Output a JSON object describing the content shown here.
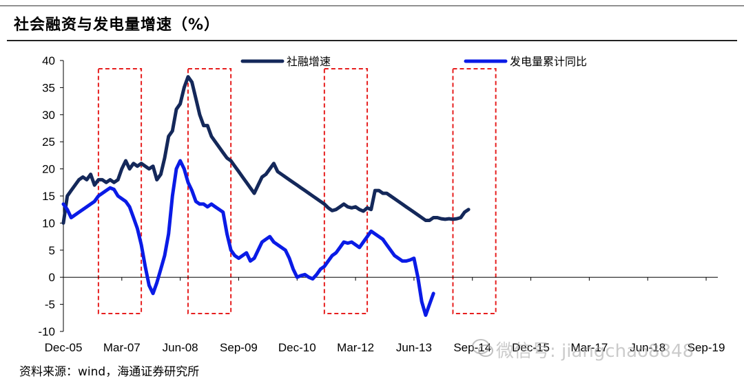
{
  "header": {
    "title": "社会融资与发电量增速（%）"
  },
  "footer": {
    "source": "资料来源：wind，海通证券研究所"
  },
  "watermark": {
    "text": "微信号: jiangchao8848"
  },
  "colors": {
    "social_financing": "#14285a",
    "power_generation": "#0a1be6",
    "highlight": "#e61e1e"
  },
  "chart_data": {
    "type": "line",
    "title": "社会融资与发电量增速（%）",
    "xlabel": "",
    "ylabel": "",
    "ylim": [
      -10,
      40
    ],
    "yticks": [
      -10,
      -5,
      0,
      5,
      10,
      15,
      20,
      25,
      30,
      35,
      40
    ],
    "x_range": [
      0,
      168
    ],
    "x_ticks": [
      {
        "label": "Dec-05",
        "x": 0
      },
      {
        "label": "Mar-07",
        "x": 15
      },
      {
        "label": "Jun-08",
        "x": 30
      },
      {
        "label": "Sep-09",
        "x": 45
      },
      {
        "label": "Dec-10",
        "x": 60
      },
      {
        "label": "Mar-12",
        "x": 75
      },
      {
        "label": "Jun-13",
        "x": 90
      },
      {
        "label": "Sep-14",
        "x": 105
      },
      {
        "label": "Dec-15",
        "x": 120
      },
      {
        "label": "Mar-17",
        "x": 135
      },
      {
        "label": "Jun-18",
        "x": 150
      },
      {
        "label": "Sep-19",
        "x": 165
      }
    ],
    "legend_position": "top",
    "highlight_periods": [
      {
        "x_start": 9,
        "x_end": 20
      },
      {
        "x_start": 32,
        "x_end": 43
      },
      {
        "x_start": 67,
        "x_end": 78
      },
      {
        "x_start": 100,
        "x_end": 111
      }
    ],
    "series": [
      {
        "name": "社融增速",
        "color_key": "social_financing",
        "points": [
          [
            0,
            10
          ],
          [
            1,
            15
          ],
          [
            2,
            16
          ],
          [
            3,
            17
          ],
          [
            4,
            18
          ],
          [
            5,
            18.5
          ],
          [
            6,
            18
          ],
          [
            7,
            19
          ],
          [
            8,
            17
          ],
          [
            9,
            18
          ],
          [
            10,
            18
          ],
          [
            11,
            17.5
          ],
          [
            12,
            18
          ],
          [
            13,
            17.5
          ],
          [
            14,
            18
          ],
          [
            15,
            20
          ],
          [
            16,
            21.5
          ],
          [
            17,
            20
          ],
          [
            18,
            21
          ],
          [
            19,
            20.5
          ],
          [
            20,
            21
          ],
          [
            21,
            20.5
          ],
          [
            22,
            20
          ],
          [
            23,
            20.5
          ],
          [
            24,
            18
          ],
          [
            25,
            19
          ],
          [
            26,
            22
          ],
          [
            27,
            26
          ],
          [
            28,
            27
          ],
          [
            29,
            31
          ],
          [
            30,
            32
          ],
          [
            31,
            35
          ],
          [
            32,
            37
          ],
          [
            33,
            36
          ],
          [
            34,
            33
          ],
          [
            35,
            30
          ],
          [
            36,
            28
          ],
          [
            37,
            28
          ],
          [
            38,
            26
          ],
          [
            39,
            25
          ],
          [
            40,
            24
          ],
          [
            41,
            23
          ],
          [
            42,
            22
          ],
          [
            43,
            21.5
          ],
          [
            44,
            20.5
          ],
          [
            45,
            19.5
          ],
          [
            46,
            18.5
          ],
          [
            47,
            17.5
          ],
          [
            48,
            16.5
          ],
          [
            49,
            15.5
          ],
          [
            50,
            17
          ],
          [
            51,
            18.5
          ],
          [
            52,
            19
          ],
          [
            53,
            20
          ],
          [
            54,
            21
          ],
          [
            55,
            19.5
          ],
          [
            56,
            19
          ],
          [
            57,
            18.5
          ],
          [
            58,
            18
          ],
          [
            59,
            17.5
          ],
          [
            60,
            17
          ],
          [
            61,
            16.5
          ],
          [
            62,
            16
          ],
          [
            63,
            15.5
          ],
          [
            64,
            15
          ],
          [
            65,
            14.5
          ],
          [
            66,
            14
          ],
          [
            67,
            13.5
          ],
          [
            68,
            12.8
          ],
          [
            69,
            12.3
          ],
          [
            70,
            12.5
          ],
          [
            71,
            13
          ],
          [
            72,
            13.5
          ],
          [
            73,
            13
          ],
          [
            74,
            12.8
          ],
          [
            75,
            13
          ],
          [
            76,
            12.5
          ],
          [
            77,
            12.2
          ],
          [
            78,
            12.8
          ],
          [
            79,
            12.5
          ],
          [
            80,
            16
          ],
          [
            81,
            16
          ],
          [
            82,
            15.5
          ],
          [
            83,
            15.5
          ],
          [
            84,
            15
          ],
          [
            85,
            14.5
          ],
          [
            86,
            14
          ],
          [
            87,
            13.5
          ],
          [
            88,
            13
          ],
          [
            89,
            12.5
          ],
          [
            90,
            12
          ],
          [
            91,
            11.5
          ],
          [
            92,
            11
          ],
          [
            93,
            10.5
          ],
          [
            94,
            10.5
          ],
          [
            95,
            11
          ],
          [
            96,
            11
          ],
          [
            97,
            10.8
          ],
          [
            98,
            10.7
          ],
          [
            99,
            10.8
          ],
          [
            100,
            10.7
          ],
          [
            101,
            10.8
          ],
          [
            102,
            11
          ],
          [
            103,
            12
          ],
          [
            104,
            12.5
          ]
        ]
      },
      {
        "name": "发电量累计同比",
        "color_key": "power_generation",
        "points": [
          [
            0,
            13.5
          ],
          [
            1,
            12.5
          ],
          [
            2,
            11
          ],
          [
            3,
            11.5
          ],
          [
            4,
            12
          ],
          [
            5,
            12.5
          ],
          [
            6,
            13
          ],
          [
            7,
            13.5
          ],
          [
            8,
            14
          ],
          [
            9,
            15
          ],
          [
            10,
            15.5
          ],
          [
            11,
            16
          ],
          [
            12,
            16.5
          ],
          [
            13,
            16.2
          ],
          [
            14,
            15
          ],
          [
            15,
            14.5
          ],
          [
            16,
            14
          ],
          [
            17,
            13
          ],
          [
            18,
            11
          ],
          [
            19,
            9
          ],
          [
            20,
            6
          ],
          [
            21,
            2
          ],
          [
            22,
            -1.5
          ],
          [
            23,
            -3
          ],
          [
            24,
            -1
          ],
          [
            25,
            1.5
          ],
          [
            26,
            4
          ],
          [
            27,
            8
          ],
          [
            28,
            15
          ],
          [
            29,
            20
          ],
          [
            30,
            21.5
          ],
          [
            31,
            20
          ],
          [
            32,
            17.5
          ],
          [
            33,
            16
          ],
          [
            34,
            14
          ],
          [
            35,
            13.5
          ],
          [
            36,
            13.5
          ],
          [
            37,
            13
          ],
          [
            38,
            13.5
          ],
          [
            39,
            13
          ],
          [
            40,
            12.5
          ],
          [
            41,
            12
          ],
          [
            42,
            8
          ],
          [
            43,
            5
          ],
          [
            44,
            4
          ],
          [
            45,
            3.5
          ],
          [
            46,
            4
          ],
          [
            47,
            4.5
          ],
          [
            48,
            3
          ],
          [
            49,
            3.5
          ],
          [
            50,
            5
          ],
          [
            51,
            6.5
          ],
          [
            52,
            7
          ],
          [
            53,
            7.5
          ],
          [
            54,
            6.5
          ],
          [
            55,
            6
          ],
          [
            56,
            5.5
          ],
          [
            57,
            5
          ],
          [
            58,
            3.5
          ],
          [
            59,
            1.5
          ],
          [
            60,
            0
          ],
          [
            61,
            0.3
          ],
          [
            62,
            0.5
          ],
          [
            63,
            0
          ],
          [
            64,
            -0.3
          ],
          [
            65,
            0.5
          ],
          [
            66,
            1.5
          ],
          [
            67,
            2
          ],
          [
            68,
            3
          ],
          [
            69,
            4
          ],
          [
            70,
            4.5
          ],
          [
            71,
            5.5
          ],
          [
            72,
            6.5
          ],
          [
            73,
            6.3
          ],
          [
            74,
            6.5
          ],
          [
            75,
            6
          ],
          [
            76,
            5.5
          ],
          [
            77,
            6.5
          ],
          [
            78,
            7.5
          ],
          [
            79,
            8.5
          ],
          [
            80,
            8
          ],
          [
            81,
            7.5
          ],
          [
            82,
            7
          ],
          [
            83,
            6
          ],
          [
            84,
            5
          ],
          [
            85,
            4
          ],
          [
            86,
            3.5
          ],
          [
            87,
            3
          ],
          [
            88,
            3
          ],
          [
            89,
            3.2
          ],
          [
            90,
            3.5
          ],
          [
            91,
            0
          ],
          [
            92,
            -4.5
          ],
          [
            93,
            -7
          ],
          [
            94,
            -5
          ],
          [
            95,
            -3
          ]
        ]
      }
    ]
  }
}
